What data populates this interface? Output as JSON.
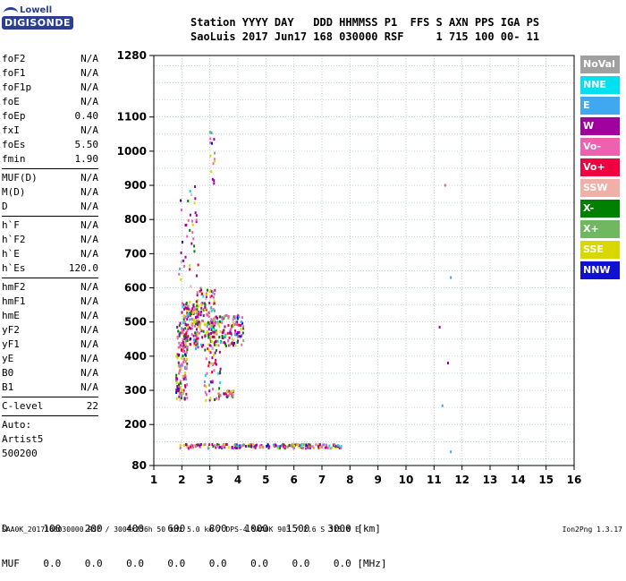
{
  "logo": {
    "top": "Lowell",
    "bottom": "DIGISONDE"
  },
  "header": {
    "line1": "Station YYYY DAY   DDD HHMMSS P1  FFS S AXN PPS IGA PS",
    "line2": "SaoLuis 2017 Jun17 168 030000 RSF     1 715 100 00- 11"
  },
  "params": {
    "group1": [
      {
        "name": "foF2",
        "value": "N/A"
      },
      {
        "name": "foF1",
        "value": "N/A"
      },
      {
        "name": "foF1p",
        "value": "N/A"
      },
      {
        "name": "foE",
        "value": "N/A"
      },
      {
        "name": "foEp",
        "value": "0.40"
      },
      {
        "name": "fxI",
        "value": "N/A"
      },
      {
        "name": "foEs",
        "value": "5.50"
      },
      {
        "name": "fmin",
        "value": "1.90"
      }
    ],
    "group2": [
      {
        "name": "MUF(D)",
        "value": "N/A"
      },
      {
        "name": "M(D)",
        "value": "N/A"
      },
      {
        "name": "D",
        "value": "N/A"
      }
    ],
    "group3": [
      {
        "name": "h`F",
        "value": "N/A"
      },
      {
        "name": "h`F2",
        "value": "N/A"
      },
      {
        "name": "h`E",
        "value": "N/A"
      },
      {
        "name": "h`Es",
        "value": "120.0"
      }
    ],
    "group4": [
      {
        "name": "hmF2",
        "value": "N/A"
      },
      {
        "name": "hmF1",
        "value": "N/A"
      },
      {
        "name": "hmE",
        "value": "N/A"
      },
      {
        "name": "yF2",
        "value": "N/A"
      },
      {
        "name": "yF1",
        "value": "N/A"
      },
      {
        "name": "yE",
        "value": "N/A"
      },
      {
        "name": "B0",
        "value": "N/A"
      },
      {
        "name": "B1",
        "value": "N/A"
      }
    ],
    "clevel": {
      "name": "C-level",
      "value": "22"
    },
    "auto": [
      "Auto:",
      "Artist5",
      "500200"
    ]
  },
  "legend": [
    {
      "label": "NoVal",
      "color": "#a0a0a0"
    },
    {
      "label": "NNE",
      "color": "#00e0f0"
    },
    {
      "label": "E",
      "color": "#40a8f0"
    },
    {
      "label": "W",
      "color": "#a000a0"
    },
    {
      "label": "Vo-",
      "color": "#f060b0"
    },
    {
      "label": "Vo+",
      "color": "#f00040"
    },
    {
      "label": "SSW",
      "color": "#f0b0a8"
    },
    {
      "label": "X-",
      "color": "#008000"
    },
    {
      "label": "X+",
      "color": "#70b860"
    },
    {
      "label": "SSE",
      "color": "#d8d800"
    },
    {
      "label": "NNW",
      "color": "#1010d0"
    }
  ],
  "chart_data": {
    "type": "scatter",
    "y_ticks": [
      80,
      200,
      300,
      400,
      500,
      600,
      700,
      800,
      900,
      1000,
      1100,
      1280
    ],
    "x_ticks": [
      1,
      2,
      3,
      4,
      5,
      6,
      7,
      8,
      9,
      10,
      11,
      12,
      13,
      14,
      15,
      16
    ],
    "xlim": [
      1,
      16
    ],
    "ylim": [
      80,
      1280
    ],
    "grid": true,
    "clusters": [
      {
        "x": [
          1.8,
          2.2
        ],
        "y": [
          270,
          500
        ],
        "n": 140
      },
      {
        "x": [
          2.0,
          2.6
        ],
        "y": [
          430,
          560
        ],
        "n": 120
      },
      {
        "x": [
          2.5,
          3.2
        ],
        "y": [
          420,
          600
        ],
        "n": 140
      },
      {
        "x": [
          3.0,
          4.2
        ],
        "y": [
          430,
          520
        ],
        "n": 150
      },
      {
        "x": [
          2.8,
          3.4
        ],
        "y": [
          270,
          420
        ],
        "n": 50
      },
      {
        "x": [
          3.3,
          3.9
        ],
        "y": [
          280,
          300
        ],
        "n": 30
      },
      {
        "x": [
          1.9,
          2.6
        ],
        "y": [
          600,
          900
        ],
        "n": 40
      },
      {
        "x": [
          3.0,
          3.2
        ],
        "y": [
          900,
          1060
        ],
        "n": 15
      },
      {
        "x": [
          1.9,
          7.7
        ],
        "y": [
          130,
          142
        ],
        "n": 200
      }
    ],
    "isolated_points": [
      {
        "x": 11.2,
        "y": 485,
        "c": "#a000a0"
      },
      {
        "x": 11.6,
        "y": 630,
        "c": "#40a8f0"
      },
      {
        "x": 11.5,
        "y": 380,
        "c": "#a000a0"
      },
      {
        "x": 11.3,
        "y": 255,
        "c": "#40a8f0"
      },
      {
        "x": 11.6,
        "y": 120,
        "c": "#40a8f0"
      },
      {
        "x": 11.4,
        "y": 900,
        "c": "#f06080"
      }
    ]
  },
  "bottom": {
    "row_d": {
      "label": "D",
      "values": [
        "100",
        "200",
        "400",
        "600",
        "800",
        "1000",
        "1500",
        "3000"
      ],
      "unit": "[km]"
    },
    "row_muf": {
      "label": "MUF",
      "values": [
        "0.0",
        "0.0",
        "0.0",
        "0.0",
        "0.0",
        "0.0",
        "0.0",
        "0.0"
      ],
      "unit": "[MHz]"
    }
  },
  "footer": "SAA0K_2017168030000.RSF / 300fx256h 50 kHz 5.0 km / DPS-4 SAA0K 903 / 2.6 S 315.8 E",
  "version": "Ion2Png 1.3.17"
}
